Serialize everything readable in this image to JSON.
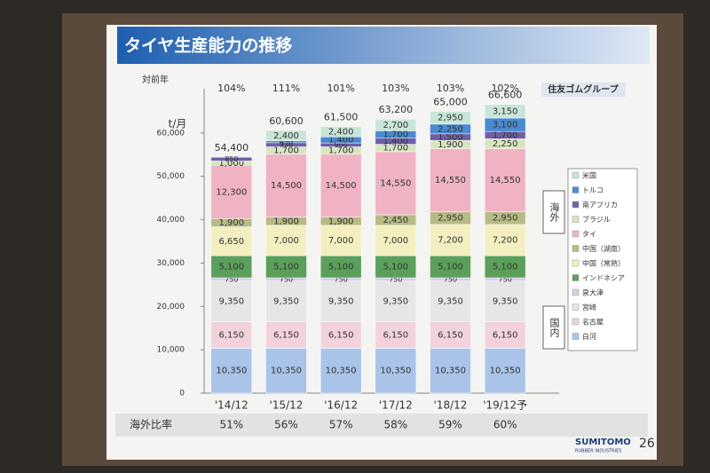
{
  "chart_data": {
    "type": "stacked_bar",
    "title": "タイヤ生産能力の推移",
    "company": "住友ゴムグループ",
    "logo_text": "SUMITOMO",
    "logo_subtext": "RUBBER INDUSTRIES",
    "page_number": "26",
    "ylabel": "t/月",
    "yoy_label": "対前年",
    "yoy": [
      "104%",
      "111%",
      "101%",
      "103%",
      "103%",
      "102%"
    ],
    "overseas_ratio_label": "海外比率",
    "overseas_ratio": [
      "51%",
      "56%",
      "57%",
      "58%",
      "59%",
      "60%"
    ],
    "legend_groups": [
      "海外",
      "国内"
    ],
    "categories": [
      "'14/12",
      "'15/12",
      "'16/12",
      "'17/12",
      "'18/12",
      "'19/12予"
    ],
    "ylim": [
      0,
      70000
    ],
    "yticks": [
      0,
      {
        "value": 10000,
        "label": "10,000"
      },
      {
        "value": 20000,
        "label": "20,000"
      },
      {
        "value": 30000,
        "label": "30,000"
      },
      {
        "value": 40000,
        "label": "40,000"
      },
      {
        "value": 50000,
        "label": "50,000"
      },
      {
        "value": 60000,
        "label": "60,000"
      }
    ],
    "totals": {
      "values": [
        54400,
        60600,
        61500,
        63200,
        65000,
        66600
      ],
      "value_labels": [
        "54,400",
        "60,600",
        "61,500",
        "63,200",
        "65,000",
        "66,600"
      ]
    },
    "series": [
      {
        "name": "白河",
        "color": "#a9c4e8",
        "values": [
          10350,
          10350,
          10350,
          10350,
          10350,
          10350
        ],
        "value_labels": [
          "10,350",
          "10,350",
          "10,350",
          "10,350",
          "10,350",
          "10,350"
        ]
      },
      {
        "name": "名古屋",
        "color": "#f2d3db",
        "values": [
          6150,
          6150,
          6150,
          6150,
          6150,
          6150
        ],
        "value_labels": [
          "6,150",
          "6,150",
          "6,150",
          "6,150",
          "6,150",
          "6,150"
        ]
      },
      {
        "name": "宮崎",
        "color": "#e6e6e6",
        "values": [
          9350,
          9350,
          9350,
          9350,
          9350,
          9350
        ],
        "value_labels": [
          "9,350",
          "9,350",
          "9,350",
          "9,350",
          "9,350",
          "9,350"
        ]
      },
      {
        "name": "泉大津",
        "color": "#d6d0e6",
        "values": [
          750,
          750,
          750,
          750,
          750,
          750
        ]
      },
      {
        "name": "インドネシア",
        "color": "#5aa05a",
        "values": [
          5100,
          5100,
          5100,
          5100,
          5100,
          5100
        ],
        "value_labels": [
          "5,100",
          "5,100",
          "5,100",
          "5,100",
          "5,100",
          "5,100"
        ]
      },
      {
        "name": "中国（常熟）",
        "color": "#f3efc0",
        "values": [
          6650,
          7000,
          7000,
          7000,
          7200,
          7200
        ],
        "value_labels": [
          "6,650",
          "7,000",
          "7,000",
          "7,000",
          "7,200",
          "7,200"
        ]
      },
      {
        "name": "中国（湖南）",
        "color": "#b8bb85",
        "values": [
          1900,
          1900,
          1900,
          2450,
          2950,
          2950
        ],
        "value_labels": [
          "1,900",
          "1,900",
          "1,900",
          "2,450",
          "2,950",
          "2,950"
        ]
      },
      {
        "name": "タイ",
        "color": "#efb3c3",
        "values": [
          12300,
          14500,
          14500,
          14550,
          14550,
          14550
        ],
        "value_labels": [
          "12,300",
          "14,500",
          "14,500",
          "14,550",
          "14,550",
          "14,550"
        ]
      },
      {
        "name": "ブラジル",
        "color": "#d8e6c0",
        "values": [
          1000,
          1700,
          1700,
          1700,
          1900,
          2250
        ],
        "value_labels": [
          "1,000",
          "1,700",
          "1,700",
          "1,700",
          "1,900",
          "2,250"
        ]
      },
      {
        "name": "南アフリカ",
        "color": "#7060a8",
        "values": [
          850,
          950,
          900,
          1400,
          1500,
          1700
        ],
        "value_labels": [
          "850",
          "950",
          "900",
          "1,400",
          "1,500",
          "1,700"
        ]
      },
      {
        "name": "トルコ",
        "color": "#4a8ad0",
        "values": [
          null,
          450,
          1400,
          1700,
          2250,
          3100
        ],
        "value_labels": [
          null,
          "450",
          "1,400",
          "1,700",
          "2,250",
          "3,100"
        ]
      },
      {
        "name": "米国",
        "color": "#c8e6d8",
        "values": [
          null,
          2400,
          2400,
          2700,
          2950,
          3150
        ],
        "value_labels": [
          null,
          "2,400",
          "2,400",
          "2,700",
          "2,950",
          "3,150"
        ]
      }
    ]
  }
}
